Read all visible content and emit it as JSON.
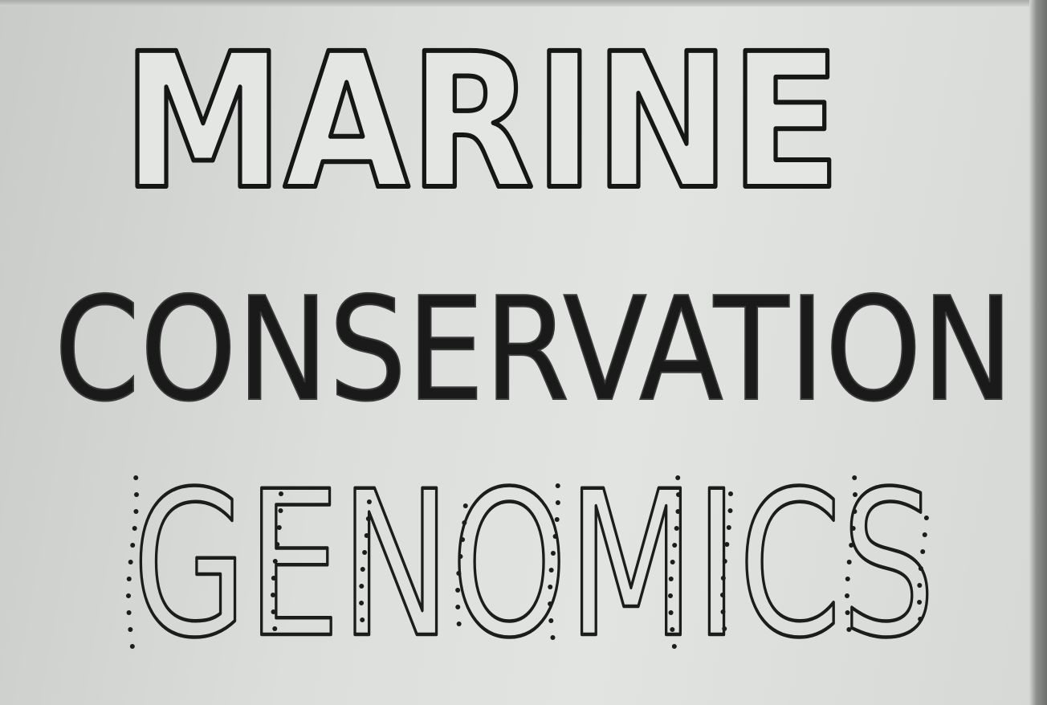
{
  "whiteboard": {
    "line_1": "MARINE",
    "line_2": "CONSERVATION",
    "line_3": "GENOMICS"
  },
  "colors": {
    "board": "#dcdedc",
    "marker": "#111111",
    "frame": "#7a7c7a"
  }
}
